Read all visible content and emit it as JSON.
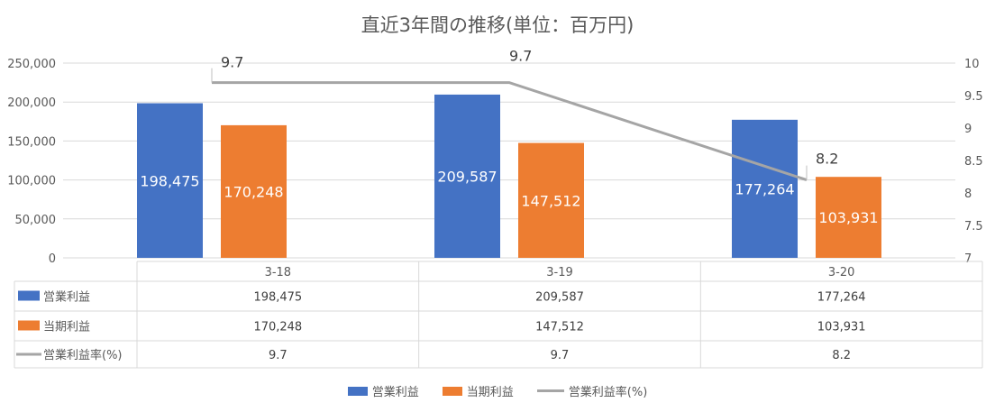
{
  "chart_data": {
    "type": "bar",
    "title": "直近3年間の推移(単位：百万円)",
    "categories": [
      "3-18",
      "3-19",
      "3-20"
    ],
    "series": [
      {
        "name": "営業利益",
        "kind": "bar",
        "axis": "left",
        "color": "#4472C4",
        "values": [
          198475,
          209587,
          177264
        ]
      },
      {
        "name": "当期利益",
        "kind": "bar",
        "axis": "left",
        "color": "#ED7D31",
        "values": [
          170248,
          147512,
          103931
        ]
      },
      {
        "name": "営業利益率(%)",
        "kind": "line",
        "axis": "right",
        "color": "#A5A5A5",
        "values": [
          9.7,
          9.7,
          8.2
        ]
      }
    ],
    "y_left": {
      "min": 0,
      "max": 250000,
      "step": 50000,
      "ticks": [
        "0",
        "50,000",
        "100,000",
        "150,000",
        "200,000",
        "250,000"
      ]
    },
    "y_right": {
      "min": 7,
      "max": 10,
      "step": 0.5,
      "ticks": [
        "7",
        "7.5",
        "8",
        "8.5",
        "9",
        "9.5",
        "10"
      ]
    },
    "value_labels": {
      "営業利益": [
        "198,475",
        "209,587",
        "177,264"
      ],
      "当期利益": [
        "170,248",
        "147,512",
        "103,931"
      ],
      "営業利益率(%)": [
        "9.7",
        "9.7",
        "8.2"
      ]
    },
    "gridlines": true,
    "data_table": true,
    "legend_position": "bottom"
  }
}
